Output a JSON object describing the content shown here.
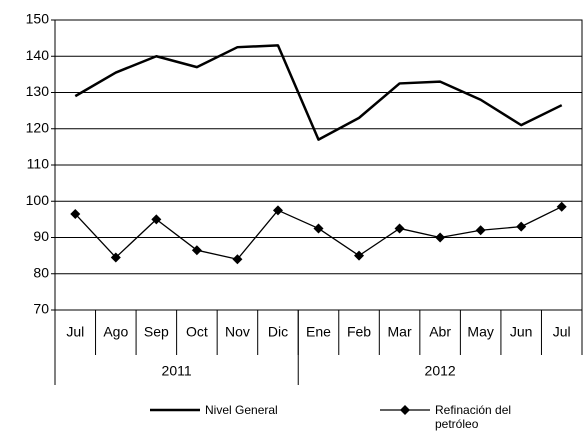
{
  "chart_data": {
    "type": "line",
    "groups": [
      {
        "name": "2011",
        "categories": [
          "Jul",
          "Ago",
          "Sep",
          "Oct",
          "Nov",
          "Dic"
        ]
      },
      {
        "name": "2012",
        "categories": [
          "Ene",
          "Feb",
          "Mar",
          "Abr",
          "May",
          "Jun",
          "Jul"
        ]
      }
    ],
    "series": [
      {
        "name": "Nivel General",
        "color": "#000000",
        "marker": "none",
        "values": [
          129,
          135.5,
          140,
          137,
          142.5,
          143,
          117,
          123,
          132.5,
          133,
          128,
          121,
          126.5
        ]
      },
      {
        "name": "Refinación del petróleo",
        "color": "#000000",
        "marker": "diamond",
        "values": [
          96.5,
          84.5,
          95,
          86.5,
          84,
          97.5,
          92.5,
          85,
          92.5,
          90,
          92,
          93,
          98.5
        ]
      }
    ],
    "ylim": [
      70,
      150
    ],
    "yticks": [
      70,
      80,
      90,
      100,
      110,
      120,
      130,
      140,
      150
    ],
    "grid": true
  }
}
